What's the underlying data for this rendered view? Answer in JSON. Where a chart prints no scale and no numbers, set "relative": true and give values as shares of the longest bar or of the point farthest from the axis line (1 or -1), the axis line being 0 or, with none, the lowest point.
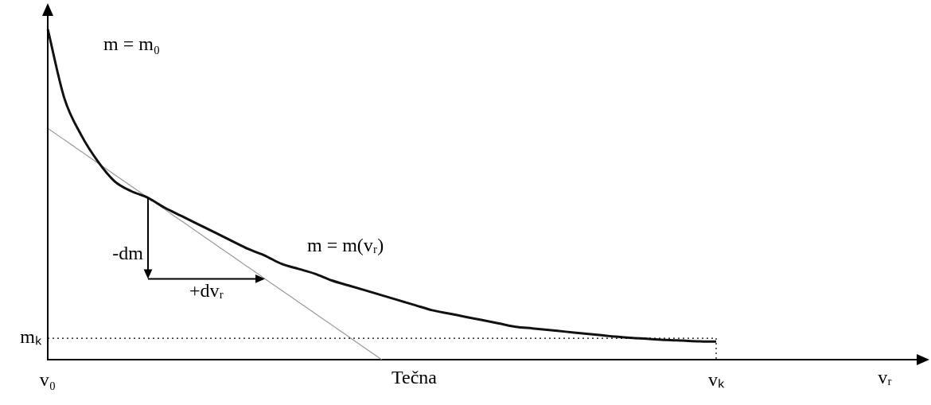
{
  "chart_data": {
    "type": "line",
    "relative": true,
    "xlabel": "vᵣ",
    "categories": [
      "v₀",
      null,
      null,
      null,
      null,
      null,
      null,
      null,
      null,
      null,
      null,
      null,
      null,
      null,
      null,
      null,
      null,
      null,
      null,
      null,
      null,
      null,
      null,
      null,
      null,
      null,
      null,
      null,
      null,
      null,
      null,
      null,
      null,
      null,
      null,
      null,
      null,
      null,
      null,
      null,
      "vₖ",
      null,
      null,
      null,
      null,
      null,
      null,
      null,
      null,
      null,
      null,
      null,
      null
    ],
    "series": [
      {
        "name": "m = m(vᵣ)",
        "color": "#111111",
        "values": [
          1.0,
          0.79,
          0.68,
          0.6,
          0.54,
          0.51,
          0.49,
          0.46,
          0.435,
          0.41,
          0.385,
          0.36,
          0.335,
          0.315,
          0.29,
          0.275,
          0.26,
          0.24,
          0.225,
          0.21,
          0.195,
          0.18,
          0.165,
          0.15,
          0.14,
          0.13,
          0.12,
          0.11,
          0.1,
          0.095,
          0.09,
          0.085,
          0.08,
          0.075,
          0.07,
          0.066,
          0.063,
          0.06,
          0.058,
          0.056,
          0.055,
          null,
          null,
          null,
          null,
          null,
          null,
          null,
          null,
          null,
          null,
          null,
          null
        ]
      },
      {
        "name": "Tečna",
        "color": "#999999",
        "values": [
          0.7,
          0.665,
          0.63,
          0.595,
          0.56,
          0.525,
          0.49,
          0.455,
          0.42,
          0.385,
          0.35,
          0.315,
          0.28,
          0.245,
          0.21,
          0.175,
          0.14,
          0.105,
          0.07,
          0.035,
          0,
          null,
          null,
          null,
          null,
          null,
          null,
          null,
          null,
          null,
          null,
          null,
          null,
          null,
          null,
          null,
          null,
          null,
          null,
          null,
          null,
          null,
          null,
          null,
          null,
          null,
          null,
          null,
          null,
          null,
          null,
          null,
          null
        ]
      }
    ],
    "ref_lines": [
      {
        "axis": "y",
        "value": 0.065,
        "label": "mₖ",
        "line_style": "dotted"
      }
    ],
    "annotations": [
      "m = m₀",
      "-dm",
      "+dvᵣ"
    ],
    "grid": false,
    "legend": false,
    "marker": "none",
    "line_style": "solid"
  }
}
